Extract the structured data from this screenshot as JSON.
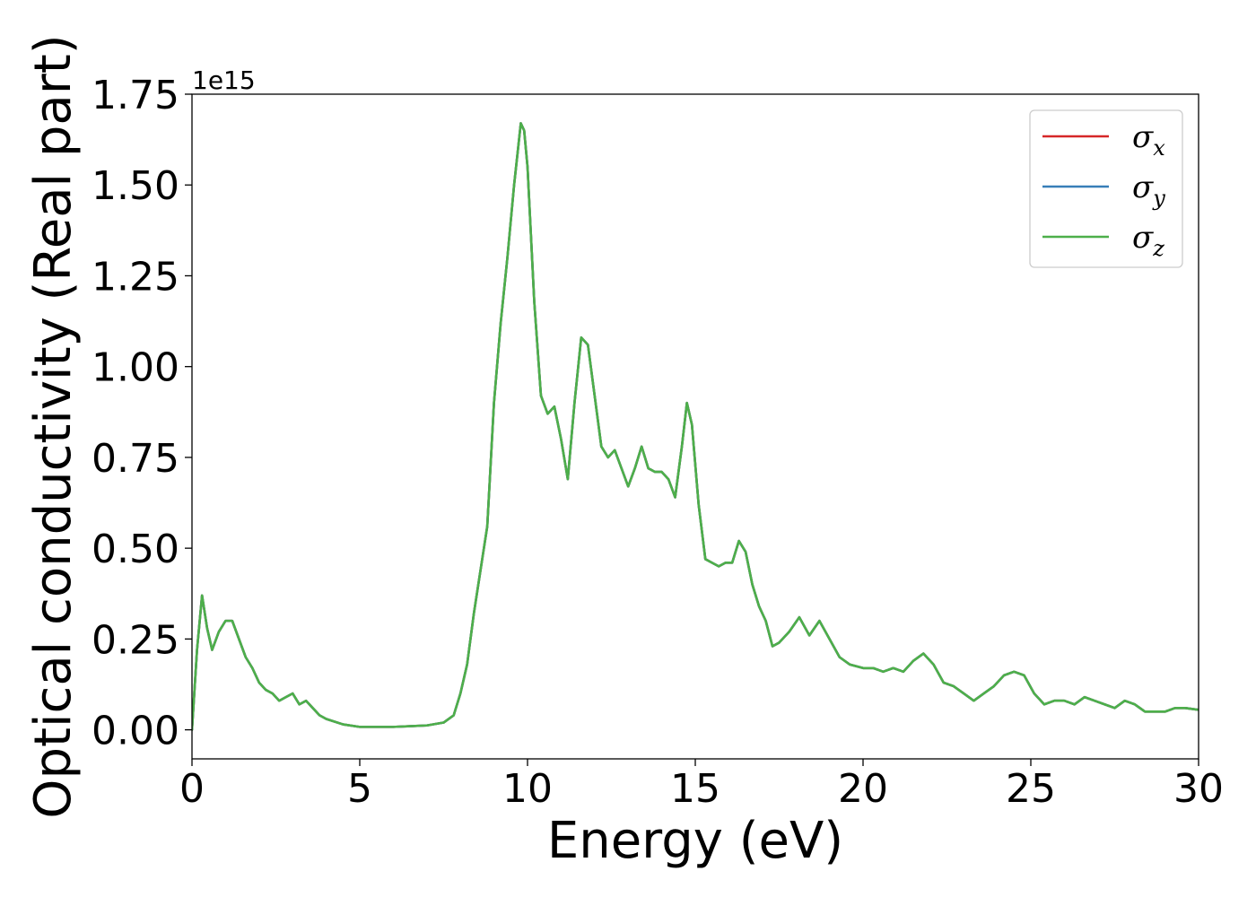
{
  "chart_data": {
    "type": "line",
    "title": "",
    "xlabel": "Energy (eV)",
    "ylabel": "Optical conductivity (Real part)",
    "y_offset_label": "1e15",
    "xlim": [
      0,
      30
    ],
    "ylim": [
      -0.08,
      1.75
    ],
    "y_scale_factor": 1000000000000000.0,
    "grid": false,
    "legend_position": "top-right",
    "x_ticks": [
      0,
      5,
      10,
      15,
      20,
      25,
      30
    ],
    "x_tick_labels": [
      "0",
      "5",
      "10",
      "15",
      "20",
      "25",
      "30"
    ],
    "y_ticks": [
      0.0,
      0.25,
      0.5,
      0.75,
      1.0,
      1.25,
      1.5,
      1.75
    ],
    "y_tick_labels": [
      "0.00",
      "0.25",
      "0.50",
      "0.75",
      "1.00",
      "1.25",
      "1.50",
      "1.75"
    ],
    "x": [
      0.0,
      0.15,
      0.3,
      0.45,
      0.6,
      0.8,
      1.0,
      1.2,
      1.4,
      1.6,
      1.8,
      2.0,
      2.2,
      2.4,
      2.6,
      2.8,
      3.0,
      3.2,
      3.4,
      3.6,
      3.8,
      4.0,
      4.5,
      5.0,
      5.5,
      6.0,
      6.5,
      7.0,
      7.5,
      7.8,
      8.0,
      8.2,
      8.4,
      8.6,
      8.8,
      9.0,
      9.2,
      9.4,
      9.6,
      9.8,
      9.9,
      10.0,
      10.2,
      10.4,
      10.6,
      10.8,
      11.0,
      11.2,
      11.4,
      11.6,
      11.8,
      12.0,
      12.2,
      12.4,
      12.6,
      12.8,
      13.0,
      13.2,
      13.4,
      13.6,
      13.8,
      14.0,
      14.2,
      14.4,
      14.6,
      14.75,
      14.9,
      15.1,
      15.3,
      15.5,
      15.7,
      15.9,
      16.1,
      16.3,
      16.5,
      16.7,
      16.9,
      17.1,
      17.3,
      17.5,
      17.8,
      18.1,
      18.4,
      18.7,
      19.0,
      19.3,
      19.6,
      20.0,
      20.3,
      20.6,
      20.9,
      21.2,
      21.5,
      21.8,
      22.1,
      22.4,
      22.7,
      23.0,
      23.3,
      23.6,
      23.9,
      24.2,
      24.5,
      24.8,
      25.1,
      25.4,
      25.7,
      26.0,
      26.3,
      26.6,
      26.9,
      27.2,
      27.5,
      27.8,
      28.1,
      28.4,
      28.7,
      29.0,
      29.3,
      29.6,
      30.0
    ],
    "series": [
      {
        "name": "σx",
        "color": "#d62728",
        "values": [
          0.0,
          0.22,
          0.37,
          0.28,
          0.22,
          0.27,
          0.3,
          0.3,
          0.25,
          0.2,
          0.17,
          0.13,
          0.11,
          0.1,
          0.08,
          0.09,
          0.1,
          0.07,
          0.08,
          0.06,
          0.04,
          0.03,
          0.015,
          0.008,
          0.008,
          0.008,
          0.01,
          0.012,
          0.02,
          0.04,
          0.1,
          0.18,
          0.32,
          0.44,
          0.56,
          0.9,
          1.12,
          1.3,
          1.5,
          1.67,
          1.65,
          1.55,
          1.18,
          0.92,
          0.87,
          0.89,
          0.8,
          0.69,
          0.9,
          1.08,
          1.06,
          0.92,
          0.78,
          0.75,
          0.77,
          0.72,
          0.67,
          0.72,
          0.78,
          0.72,
          0.71,
          0.71,
          0.69,
          0.64,
          0.78,
          0.9,
          0.84,
          0.62,
          0.47,
          0.46,
          0.45,
          0.46,
          0.46,
          0.52,
          0.49,
          0.4,
          0.34,
          0.3,
          0.23,
          0.24,
          0.27,
          0.31,
          0.26,
          0.3,
          0.25,
          0.2,
          0.18,
          0.17,
          0.17,
          0.16,
          0.17,
          0.16,
          0.19,
          0.21,
          0.18,
          0.13,
          0.12,
          0.1,
          0.08,
          0.1,
          0.12,
          0.15,
          0.16,
          0.15,
          0.1,
          0.07,
          0.08,
          0.08,
          0.07,
          0.09,
          0.08,
          0.07,
          0.06,
          0.08,
          0.07,
          0.05,
          0.05,
          0.05,
          0.06,
          0.06,
          0.055
        ]
      },
      {
        "name": "σy",
        "color": "#377eb8",
        "values": [
          0.0,
          0.22,
          0.37,
          0.28,
          0.22,
          0.27,
          0.3,
          0.3,
          0.25,
          0.2,
          0.17,
          0.13,
          0.11,
          0.1,
          0.08,
          0.09,
          0.1,
          0.07,
          0.08,
          0.06,
          0.04,
          0.03,
          0.015,
          0.008,
          0.008,
          0.008,
          0.01,
          0.012,
          0.02,
          0.04,
          0.1,
          0.18,
          0.32,
          0.44,
          0.56,
          0.9,
          1.12,
          1.3,
          1.5,
          1.67,
          1.65,
          1.55,
          1.18,
          0.92,
          0.87,
          0.89,
          0.8,
          0.69,
          0.9,
          1.08,
          1.06,
          0.92,
          0.78,
          0.75,
          0.77,
          0.72,
          0.67,
          0.72,
          0.78,
          0.72,
          0.71,
          0.71,
          0.69,
          0.64,
          0.78,
          0.9,
          0.84,
          0.62,
          0.47,
          0.46,
          0.45,
          0.46,
          0.46,
          0.52,
          0.49,
          0.4,
          0.34,
          0.3,
          0.23,
          0.24,
          0.27,
          0.31,
          0.26,
          0.3,
          0.25,
          0.2,
          0.18,
          0.17,
          0.17,
          0.16,
          0.17,
          0.16,
          0.19,
          0.21,
          0.18,
          0.13,
          0.12,
          0.1,
          0.08,
          0.1,
          0.12,
          0.15,
          0.16,
          0.15,
          0.1,
          0.07,
          0.08,
          0.08,
          0.07,
          0.09,
          0.08,
          0.07,
          0.06,
          0.08,
          0.07,
          0.05,
          0.05,
          0.05,
          0.06,
          0.06,
          0.055
        ]
      },
      {
        "name": "σz",
        "color": "#4daf4a",
        "values": [
          0.0,
          0.22,
          0.37,
          0.28,
          0.22,
          0.27,
          0.3,
          0.3,
          0.25,
          0.2,
          0.17,
          0.13,
          0.11,
          0.1,
          0.08,
          0.09,
          0.1,
          0.07,
          0.08,
          0.06,
          0.04,
          0.03,
          0.015,
          0.008,
          0.008,
          0.008,
          0.01,
          0.012,
          0.02,
          0.04,
          0.1,
          0.18,
          0.32,
          0.44,
          0.56,
          0.9,
          1.12,
          1.3,
          1.5,
          1.67,
          1.65,
          1.55,
          1.18,
          0.92,
          0.87,
          0.89,
          0.8,
          0.69,
          0.9,
          1.08,
          1.06,
          0.92,
          0.78,
          0.75,
          0.77,
          0.72,
          0.67,
          0.72,
          0.78,
          0.72,
          0.71,
          0.71,
          0.69,
          0.64,
          0.78,
          0.9,
          0.84,
          0.62,
          0.47,
          0.46,
          0.45,
          0.46,
          0.46,
          0.52,
          0.49,
          0.4,
          0.34,
          0.3,
          0.23,
          0.24,
          0.27,
          0.31,
          0.26,
          0.3,
          0.25,
          0.2,
          0.18,
          0.17,
          0.17,
          0.16,
          0.17,
          0.16,
          0.19,
          0.21,
          0.18,
          0.13,
          0.12,
          0.1,
          0.08,
          0.1,
          0.12,
          0.15,
          0.16,
          0.15,
          0.1,
          0.07,
          0.08,
          0.08,
          0.07,
          0.09,
          0.08,
          0.07,
          0.06,
          0.08,
          0.07,
          0.05,
          0.05,
          0.05,
          0.06,
          0.06,
          0.055
        ]
      }
    ],
    "legend": [
      {
        "symbol": "σ",
        "sub": "x",
        "color": "#d62728"
      },
      {
        "symbol": "σ",
        "sub": "y",
        "color": "#377eb8"
      },
      {
        "symbol": "σ",
        "sub": "z",
        "color": "#4daf4a"
      }
    ]
  }
}
